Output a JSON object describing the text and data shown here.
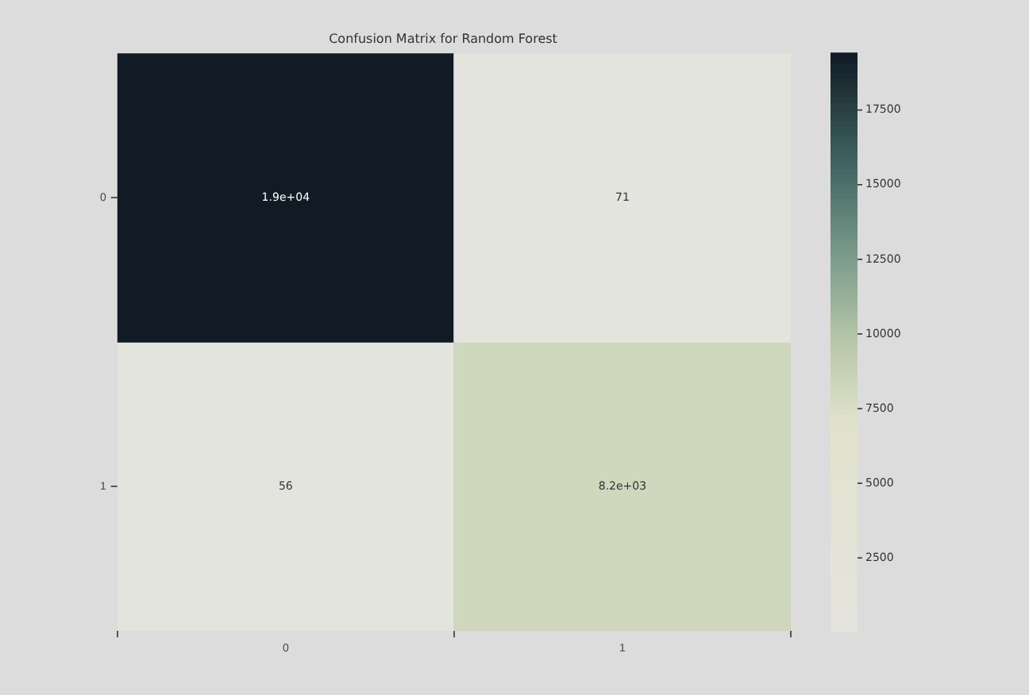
{
  "chart_data": {
    "type": "heatmap",
    "title": "Confusion Matrix for Random Forest",
    "categories": [
      "0",
      "1"
    ],
    "y_categories": [
      "0",
      "1"
    ],
    "cells": [
      [
        19400,
        71
      ],
      [
        56,
        8200
      ]
    ],
    "cell_labels": [
      [
        "1.9e+04",
        "71"
      ],
      [
        "56",
        "8.2e+03"
      ]
    ],
    "clim": [
      56,
      19400
    ],
    "cticks": [
      2500,
      5000,
      7500,
      10000,
      12500,
      15000,
      17500
    ]
  }
}
